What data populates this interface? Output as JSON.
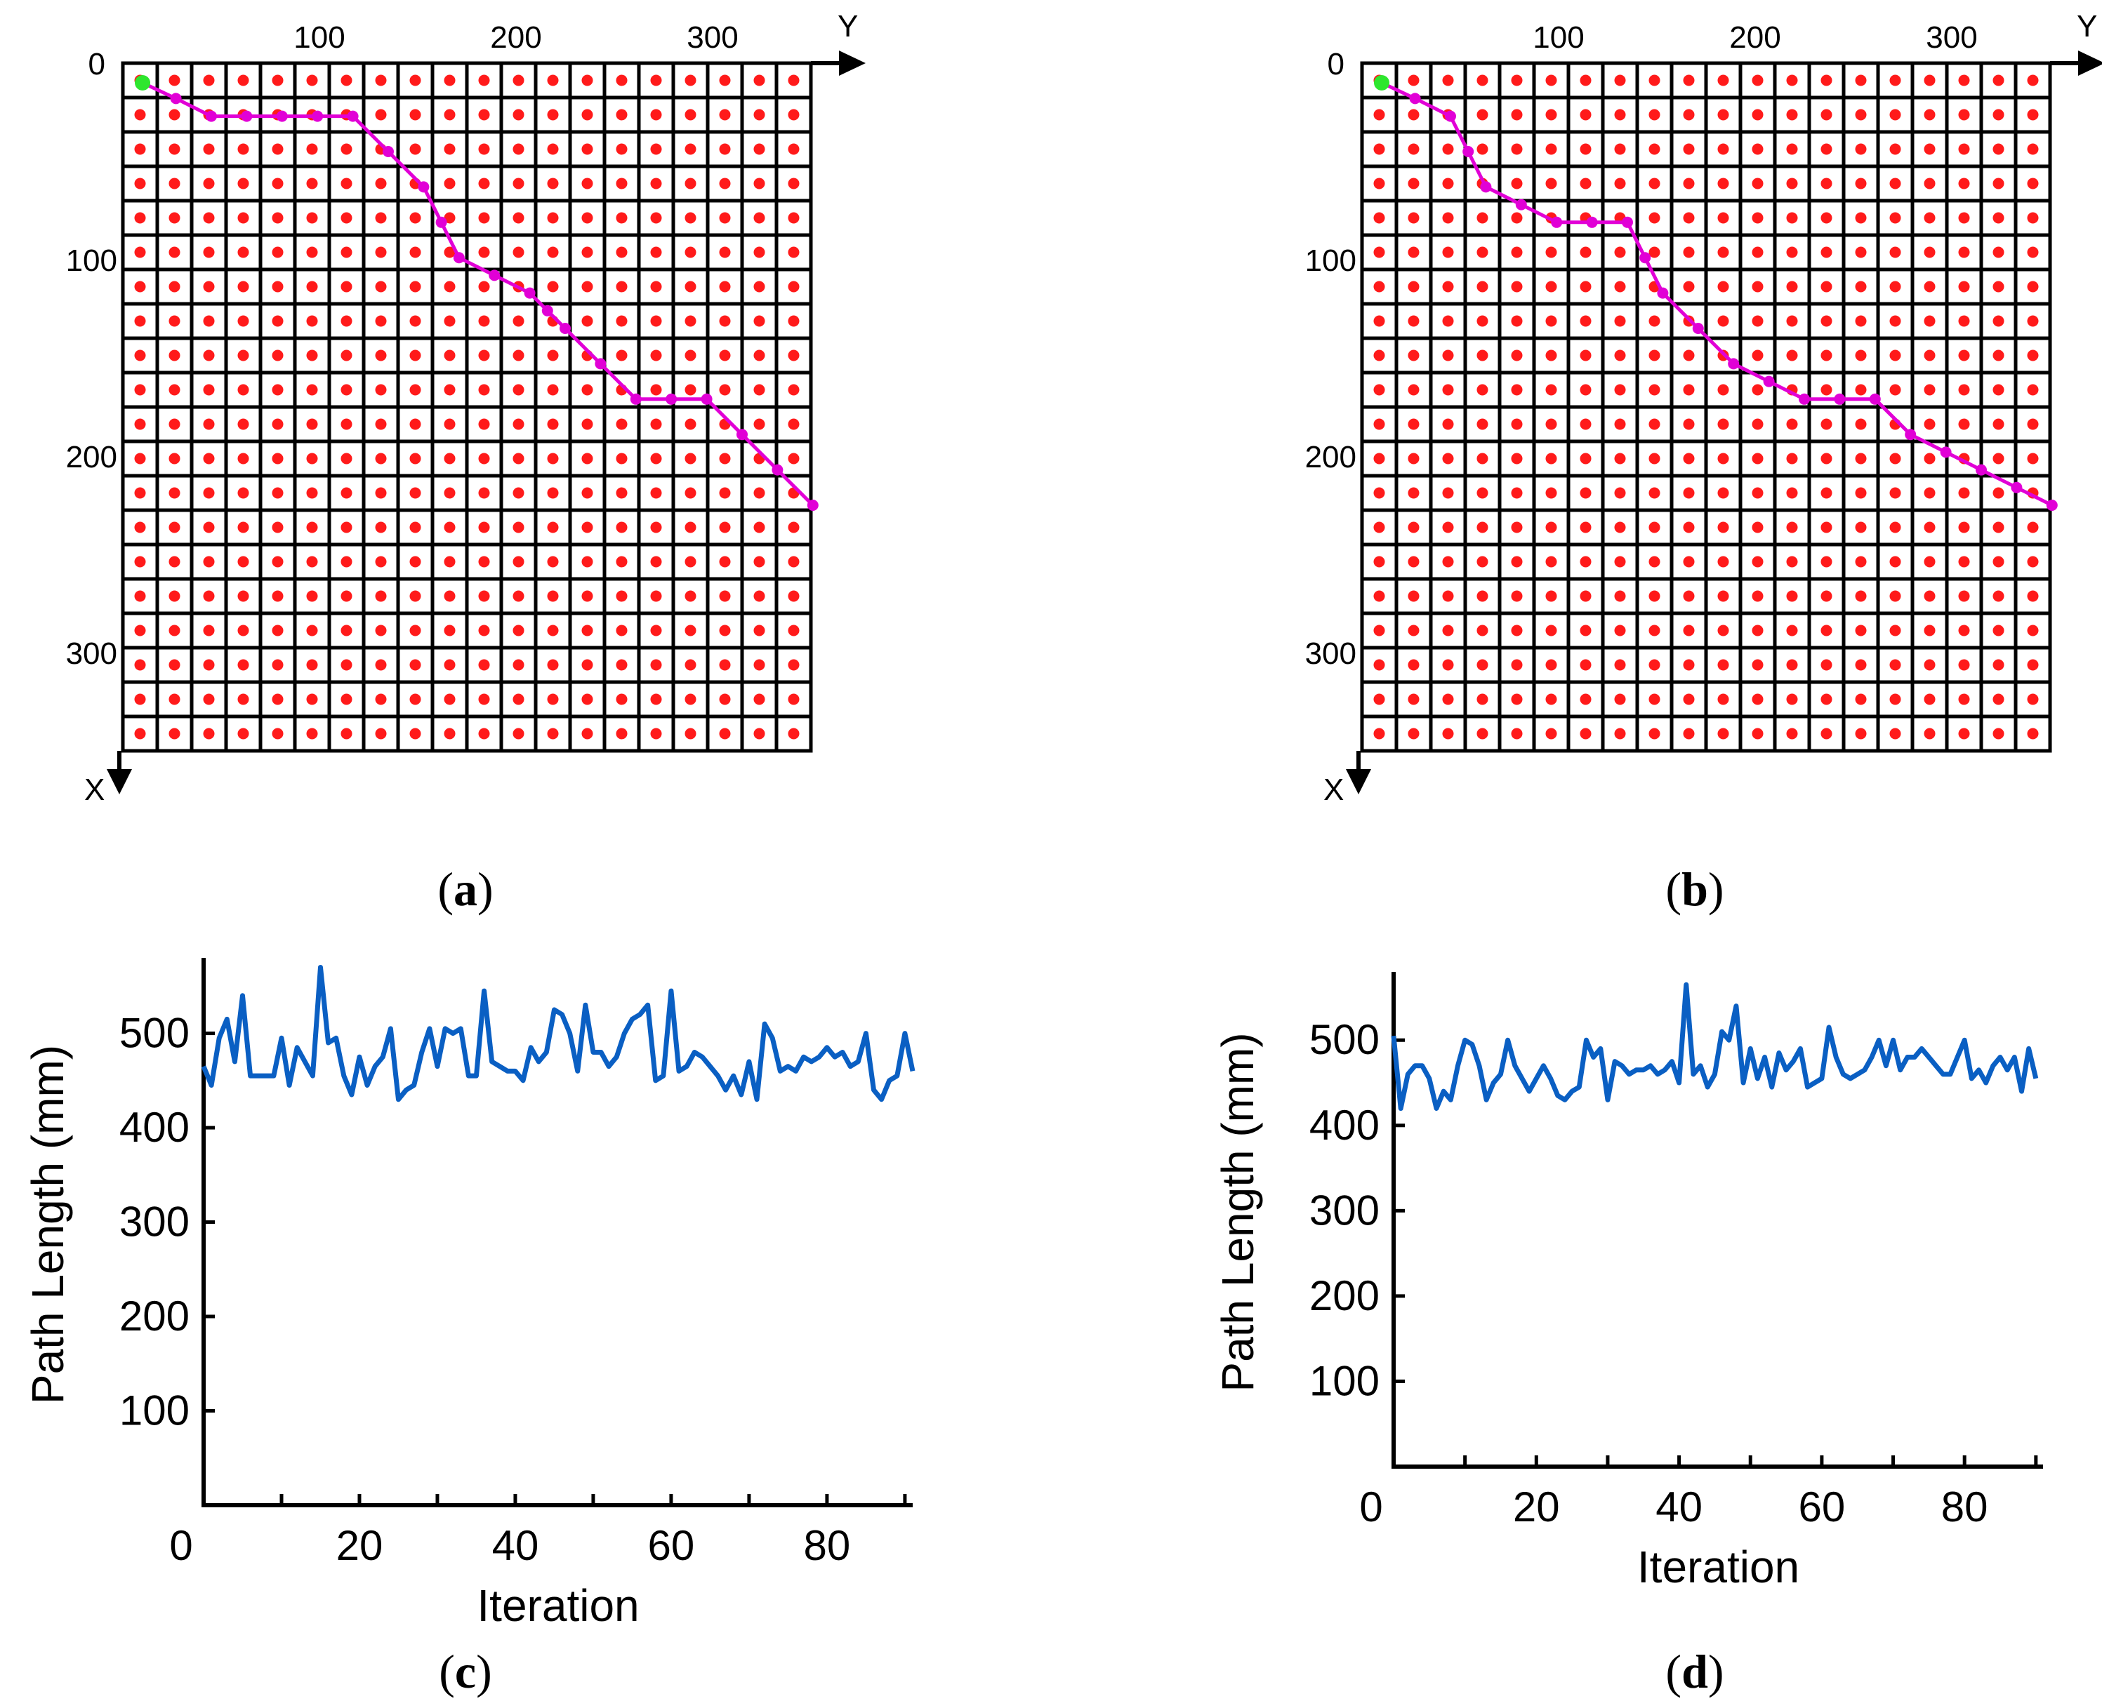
{
  "colors": {
    "grid": "#000000",
    "node": "#ff1a1a",
    "path": "#e100d6",
    "start": "#2ee62e",
    "line": "#0a5fc3",
    "background": "#ffffff"
  },
  "chart_data": [
    {
      "id": "a",
      "type": "grid-path",
      "caption": "a",
      "x_axis_label": "X",
      "y_axis_label": "Y",
      "x_ticks": [
        0,
        100,
        200,
        300
      ],
      "y_ticks": [
        100,
        200,
        300
      ],
      "grid_cells": 20,
      "grid_extent": 350,
      "start_point": {
        "x": 10,
        "y": 10
      },
      "path": [
        {
          "x": 10,
          "y": 10
        },
        {
          "x": 18,
          "y": 27
        },
        {
          "x": 27,
          "y": 45
        },
        {
          "x": 27,
          "y": 63
        },
        {
          "x": 27,
          "y": 81
        },
        {
          "x": 27,
          "y": 99
        },
        {
          "x": 27,
          "y": 117
        },
        {
          "x": 45,
          "y": 135
        },
        {
          "x": 63,
          "y": 153
        },
        {
          "x": 81,
          "y": 162
        },
        {
          "x": 99,
          "y": 171
        },
        {
          "x": 108,
          "y": 189
        },
        {
          "x": 117,
          "y": 207
        },
        {
          "x": 126,
          "y": 216
        },
        {
          "x": 135,
          "y": 225
        },
        {
          "x": 153,
          "y": 243
        },
        {
          "x": 171,
          "y": 261
        },
        {
          "x": 171,
          "y": 279
        },
        {
          "x": 171,
          "y": 297
        },
        {
          "x": 189,
          "y": 315
        },
        {
          "x": 207,
          "y": 333
        },
        {
          "x": 225,
          "y": 351
        }
      ]
    },
    {
      "id": "b",
      "type": "grid-path",
      "caption": "b",
      "x_axis_label": "X",
      "y_axis_label": "Y",
      "x_ticks": [
        0,
        100,
        200,
        300
      ],
      "y_ticks": [
        100,
        200,
        300
      ],
      "grid_cells": 20,
      "grid_extent": 350,
      "start_point": {
        "x": 10,
        "y": 10
      },
      "path": [
        {
          "x": 10,
          "y": 10
        },
        {
          "x": 18,
          "y": 27
        },
        {
          "x": 27,
          "y": 45
        },
        {
          "x": 45,
          "y": 54
        },
        {
          "x": 63,
          "y": 63
        },
        {
          "x": 72,
          "y": 81
        },
        {
          "x": 81,
          "y": 99
        },
        {
          "x": 81,
          "y": 117
        },
        {
          "x": 81,
          "y": 135
        },
        {
          "x": 99,
          "y": 144
        },
        {
          "x": 117,
          "y": 153
        },
        {
          "x": 135,
          "y": 171
        },
        {
          "x": 153,
          "y": 189
        },
        {
          "x": 162,
          "y": 207
        },
        {
          "x": 171,
          "y": 225
        },
        {
          "x": 171,
          "y": 243
        },
        {
          "x": 171,
          "y": 261
        },
        {
          "x": 189,
          "y": 279
        },
        {
          "x": 198,
          "y": 297
        },
        {
          "x": 207,
          "y": 315
        },
        {
          "x": 216,
          "y": 333
        },
        {
          "x": 225,
          "y": 351
        }
      ]
    },
    {
      "id": "c",
      "type": "line",
      "caption": "c",
      "xlabel": "Iteration",
      "ylabel": "Path Length (mm)",
      "x_ticks": [
        0,
        20,
        40,
        60,
        80
      ],
      "y_ticks": [
        100,
        200,
        300,
        400,
        500
      ],
      "xlim": [
        0,
        91
      ],
      "ylim": [
        0,
        580
      ],
      "values": [
        465,
        445,
        495,
        515,
        470,
        540,
        455,
        455,
        455,
        455,
        495,
        445,
        485,
        470,
        455,
        570,
        490,
        495,
        455,
        435,
        475,
        445,
        465,
        475,
        505,
        430,
        440,
        445,
        480,
        505,
        465,
        505,
        500,
        505,
        455,
        455,
        545,
        470,
        465,
        460,
        460,
        450,
        485,
        470,
        480,
        525,
        520,
        500,
        460,
        530,
        480,
        480,
        465,
        475,
        500,
        515,
        520,
        530,
        450,
        455,
        545,
        460,
        465,
        480,
        475,
        465,
        455,
        440,
        455,
        435,
        470,
        430,
        510,
        495,
        460,
        465,
        460,
        475,
        470,
        475,
        485,
        475,
        480,
        465,
        470,
        500,
        440,
        430,
        450,
        455,
        500,
        460
      ]
    },
    {
      "id": "d",
      "type": "line",
      "caption": "d",
      "xlabel": "Iteration",
      "ylabel": "Path Length (mm)",
      "x_ticks": [
        0,
        20,
        40,
        60,
        80
      ],
      "y_ticks": [
        100,
        200,
        300,
        400,
        500
      ],
      "xlim": [
        0,
        91
      ],
      "ylim": [
        0,
        580
      ],
      "values": [
        505,
        420,
        460,
        470,
        470,
        455,
        420,
        440,
        430,
        470,
        500,
        495,
        470,
        430,
        450,
        460,
        500,
        470,
        455,
        440,
        455,
        470,
        455,
        435,
        430,
        440,
        445,
        500,
        480,
        490,
        430,
        475,
        470,
        460,
        465,
        465,
        470,
        460,
        465,
        475,
        450,
        565,
        460,
        470,
        445,
        460,
        510,
        500,
        540,
        450,
        490,
        455,
        480,
        445,
        485,
        465,
        475,
        490,
        445,
        450,
        455,
        515,
        480,
        460,
        455,
        460,
        465,
        480,
        500,
        470,
        500,
        465,
        480,
        480,
        490,
        480,
        470,
        460,
        460,
        480,
        500,
        455,
        465,
        450,
        470,
        480,
        465,
        480,
        440,
        490,
        455
      ]
    }
  ]
}
